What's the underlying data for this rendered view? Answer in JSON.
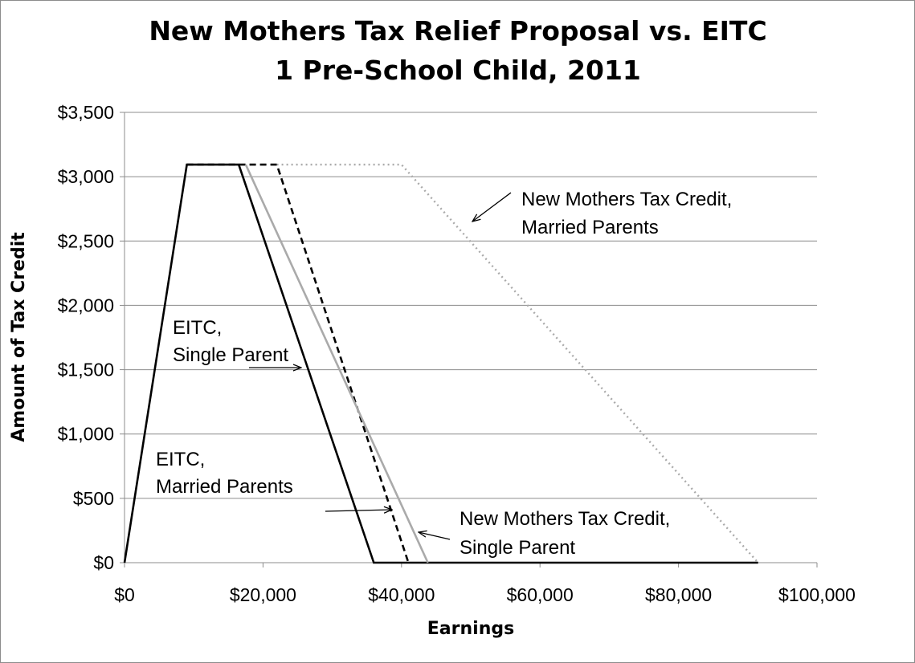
{
  "chart_data": {
    "type": "line",
    "title": [
      "New Mothers Tax Relief Proposal vs. EITC",
      "1 Pre-School Child, 2011"
    ],
    "xlabel": "Earnings",
    "ylabel": "Amount of Tax Credit",
    "xlim": [
      0,
      100000
    ],
    "ylim": [
      0,
      3500
    ],
    "x_ticks": [
      0,
      20000,
      40000,
      60000,
      80000,
      100000
    ],
    "x_tick_labels": [
      "$0",
      "$20,000",
      "$40,000",
      "$60,000",
      "$80,000",
      "$100,000"
    ],
    "y_ticks": [
      0,
      500,
      1000,
      1500,
      2000,
      2500,
      3000,
      3500
    ],
    "y_tick_labels": [
      "$0",
      "$500",
      "$1,000",
      "$1,500",
      "$2,000",
      "$2,500",
      "$3,000",
      "$3,500"
    ],
    "grid": "horizontal",
    "legend": "none",
    "series": [
      {
        "style": "solid-black",
        "color": "#000000",
        "x": [
          0,
          9000,
          16500,
          36000,
          91500
        ],
        "y": [
          0,
          3094,
          3094,
          0,
          0
        ]
      },
      {
        "style": "dashed-black",
        "color": "#000000",
        "x": [
          9000,
          22000,
          41000
        ],
        "y": [
          3094,
          3094,
          0
        ]
      },
      {
        "style": "solid-gray",
        "color": "#aaaaaa",
        "x": [
          17500,
          43800
        ],
        "y": [
          3094,
          0
        ]
      },
      {
        "style": "dotted-gray",
        "color": "#aaaaaa",
        "x": [
          22000,
          40000,
          91500
        ],
        "y": [
          3094,
          3094,
          0
        ]
      }
    ],
    "annotations": [
      {
        "lines": [
          "New Mothers Tax Credit,",
          "Married Parents"
        ],
        "arrow_to": [
          50000,
          2650
        ]
      },
      {
        "lines": [
          "EITC,",
          "Single Parent"
        ],
        "arrow_to": [
          25500,
          1510
        ]
      },
      {
        "lines": [
          "EITC,",
          "Married Parents"
        ],
        "arrow_to": [
          38700,
          410
        ]
      },
      {
        "lines": [
          "New Mothers Tax Credit,",
          "Single Parent"
        ],
        "arrow_to": [
          42200,
          230
        ]
      }
    ]
  }
}
